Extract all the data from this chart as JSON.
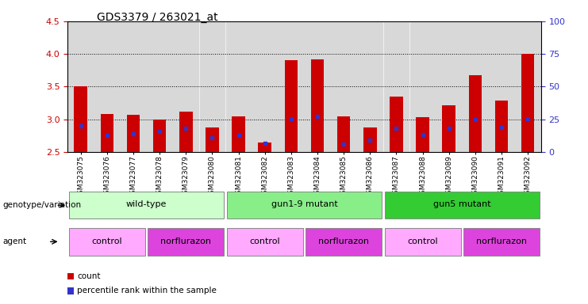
{
  "title": "GDS3379 / 263021_at",
  "samples": [
    "GSM323075",
    "GSM323076",
    "GSM323077",
    "GSM323078",
    "GSM323079",
    "GSM323080",
    "GSM323081",
    "GSM323082",
    "GSM323083",
    "GSM323084",
    "GSM323085",
    "GSM323086",
    "GSM323087",
    "GSM323088",
    "GSM323089",
    "GSM323090",
    "GSM323091",
    "GSM323092"
  ],
  "count_values": [
    3.5,
    3.08,
    3.07,
    3.0,
    3.12,
    2.87,
    3.04,
    2.65,
    3.9,
    3.92,
    3.05,
    2.87,
    3.35,
    3.03,
    3.22,
    3.67,
    3.29,
    4.0
  ],
  "percentile_values": [
    2.9,
    2.75,
    2.78,
    2.82,
    2.86,
    2.72,
    2.75,
    2.63,
    3.01,
    3.04,
    2.62,
    2.68,
    2.86,
    2.77,
    2.86,
    3.0,
    2.88,
    3.01
  ],
  "ylim_left": [
    2.5,
    4.5
  ],
  "ylim_right": [
    0,
    100
  ],
  "yticks_left": [
    2.5,
    3.0,
    3.5,
    4.0,
    4.5
  ],
  "yticks_right": [
    0,
    25,
    50,
    75,
    100
  ],
  "bar_color": "#cc0000",
  "percentile_color": "#3333cc",
  "bar_width": 0.5,
  "plot_bg_color": "#e8e8e8",
  "genotype_groups": [
    {
      "label": "wild-type",
      "start": 0,
      "end": 5,
      "color": "#ccffcc"
    },
    {
      "label": "gun1-9 mutant",
      "start": 6,
      "end": 11,
      "color": "#88ee88"
    },
    {
      "label": "gun5 mutant",
      "start": 12,
      "end": 17,
      "color": "#33cc33"
    }
  ],
  "agent_groups": [
    {
      "label": "control",
      "start": 0,
      "end": 2,
      "color": "#ffaaff"
    },
    {
      "label": "norflurazon",
      "start": 3,
      "end": 5,
      "color": "#dd44dd"
    },
    {
      "label": "control",
      "start": 6,
      "end": 8,
      "color": "#ffaaff"
    },
    {
      "label": "norflurazon",
      "start": 9,
      "end": 11,
      "color": "#dd44dd"
    },
    {
      "label": "control",
      "start": 12,
      "end": 14,
      "color": "#ffaaff"
    },
    {
      "label": "norflurazon",
      "start": 15,
      "end": 17,
      "color": "#dd44dd"
    }
  ],
  "grid_lines": [
    3.0,
    3.5,
    4.0
  ],
  "legend_items": [
    {
      "label": "count",
      "color": "#cc0000"
    },
    {
      "label": "percentile rank within the sample",
      "color": "#3333cc"
    }
  ]
}
